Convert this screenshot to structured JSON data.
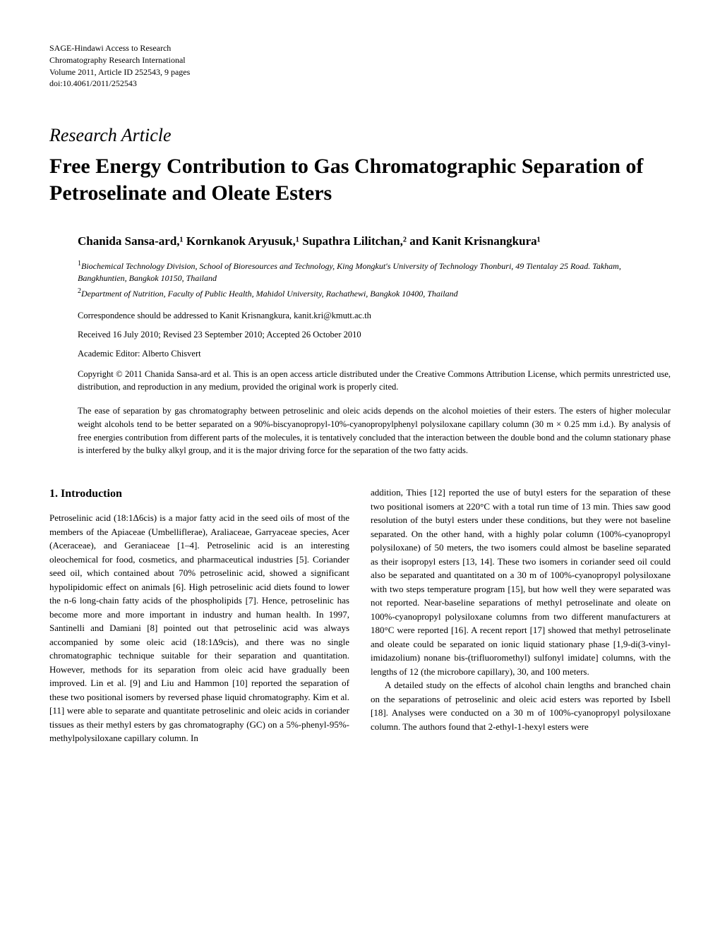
{
  "journal": {
    "line1": "SAGE-Hindawi Access to Research",
    "line2": "Chromatography Research International",
    "line3": "Volume 2011, Article ID 252543, 9 pages",
    "line4": "doi:10.4061/2011/252543"
  },
  "article": {
    "type": "Research Article",
    "title": "Free Energy Contribution to Gas Chromatographic Separation of Petroselinate and Oleate Esters"
  },
  "authors": "Chanida Sansa-ard,¹ Kornkanok Aryusuk,¹ Supathra Lilitchan,² and Kanit Krisnangkura¹",
  "affiliations": {
    "a1sup": "1",
    "a1": "Biochemical Technology Division, School of Bioresources and Technology, King Mongkut's University of Technology Thonburi, 49 Tientalay 25 Road. Takham, Bangkhuntien, Bangkok 10150, Thailand",
    "a2sup": "2",
    "a2": "Department of Nutrition, Faculty of Public Health, Mahidol University, Rachathewi, Bangkok 10400, Thailand"
  },
  "correspondence": "Correspondence should be addressed to Kanit Krisnangkura, kanit.kri@kmutt.ac.th",
  "dates": "Received 16 July 2010; Revised 23 September 2010; Accepted 26 October 2010",
  "editor": "Academic Editor: Alberto Chisvert",
  "copyright": "Copyright © 2011 Chanida Sansa-ard et al. This is an open access article distributed under the Creative Commons Attribution License, which permits unrestricted use, distribution, and reproduction in any medium, provided the original work is properly cited.",
  "abstract": "The ease of separation by gas chromatography between petroselinic and oleic acids depends on the alcohol moieties of their esters. The esters of higher molecular weight alcohols tend to be better separated on a 90%-biscyanopropyl-10%-cyanopropylphenyl polysiloxane capillary column (30 m × 0.25 mm i.d.). By analysis of free energies contribution from different parts of the molecules, it is tentatively concluded that the interaction between the double bond and the column stationary phase is interfered by the bulky alkyl group, and it is the major driving force for the separation of the two fatty acids.",
  "section1": {
    "heading": "1. Introduction",
    "col1": "Petroselinic acid (18:1Δ6cis) is a major fatty acid in the seed oils of most of the members of the Apiaceae (Umbelliflerae), Araliaceae, Garryaceae species, Acer (Aceraceae), and Geraniaceae [1–4]. Petroselinic acid is an interesting oleochemical for food, cosmetics, and pharmaceutical industries [5]. Coriander seed oil, which contained about 70% petroselinic acid, showed a significant hypolipidomic effect on animals [6]. High petroselinic acid diets found to lower the n-6 long-chain fatty acids of the phospholipids [7]. Hence, petroselinic has become more and more important in industry and human health. In 1997, Santinelli and Damiani [8] pointed out that petroselinic acid was always accompanied by some oleic acid (18:1Δ9cis), and there was no single chromatographic technique suitable for their separation and quantitation. However, methods for its separation from oleic acid have gradually been improved. Lin et al. [9] and Liu and Hammon [10] reported the separation of these two positional isomers by reversed phase liquid chromatography. Kim et al. [11] were able to separate and quantitate petroselinic and oleic acids in coriander tissues as their methyl esters by gas chromatography (GC) on a 5%-phenyl-95%-methylpolysiloxane capillary column. In",
    "col2p1": "addition, Thies [12] reported the use of butyl esters for the separation of these two positional isomers at 220°C with a total run time of 13 min. Thies saw good resolution of the butyl esters under these conditions, but they were not baseline separated. On the other hand, with a highly polar column (100%-cyanopropyl polysiloxane) of 50 meters, the two isomers could almost be baseline separated as their isopropyl esters [13, 14]. These two isomers in coriander seed oil could also be separated and quantitated on a 30 m of 100%-cyanopropyl polysiloxane with two steps temperature program [15], but how well they were separated was not reported. Near-baseline separations of methyl petroselinate and oleate on 100%-cyanopropyl polysiloxane columns from two different manufacturers at 180°C were reported [16]. A recent report [17] showed that methyl petroselinate and oleate could be separated on ionic liquid stationary phase [1,9-di(3-vinyl-imidazolium) nonane bis-(trifluoromethyl) sulfonyl imidate] columns, with the lengths of 12 (the microbore capillary), 30, and 100 meters.",
    "col2p2": "A detailed study on the effects of alcohol chain lengths and branched chain on the separations of petroselinic and oleic acid esters was reported by Isbell [18]. Analyses were conducted on a 30 m of 100%-cyanopropyl polysiloxane column. The authors found that 2-ethyl-1-hexyl esters were"
  }
}
